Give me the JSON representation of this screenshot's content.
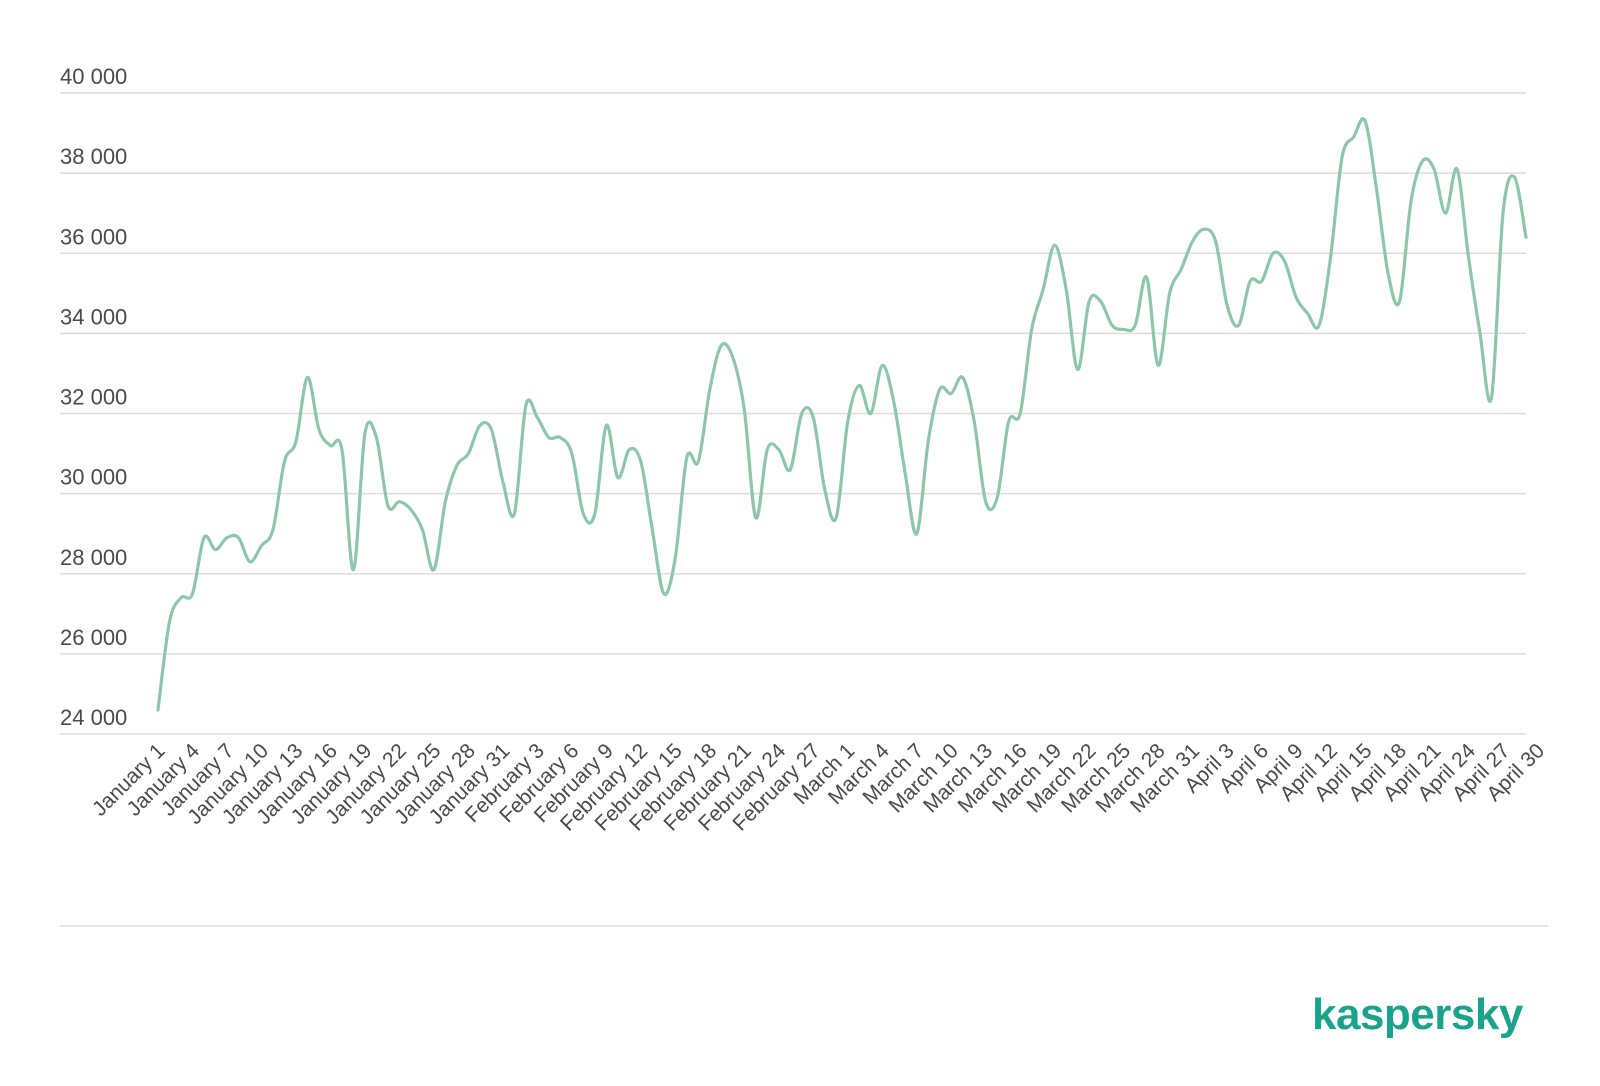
{
  "brand": {
    "logo_text": "kaspersky",
    "color": "#1aa38a"
  },
  "chart_data": {
    "type": "line",
    "title": "",
    "xlabel": "",
    "ylabel": "",
    "ylim": [
      24000,
      40000
    ],
    "yticks": [
      24000,
      26000,
      28000,
      30000,
      32000,
      34000,
      36000,
      38000,
      40000
    ],
    "ytick_labels": [
      "24 000",
      "26 000",
      "28 000",
      "30 000",
      "32 000",
      "34 000",
      "36 000",
      "38 000",
      "40 000"
    ],
    "grid": true,
    "line_color": "#8ec6aa",
    "categories": [
      "January 1",
      "January 2",
      "January 3",
      "January 4",
      "January 5",
      "January 6",
      "January 7",
      "January 8",
      "January 9",
      "January 10",
      "January 11",
      "January 12",
      "January 13",
      "January 14",
      "January 15",
      "January 16",
      "January 17",
      "January 18",
      "January 19",
      "January 20",
      "January 21",
      "January 22",
      "January 23",
      "January 24",
      "January 25",
      "January 26",
      "January 27",
      "January 28",
      "January 29",
      "January 30",
      "January 31",
      "February 1",
      "February 2",
      "February 3",
      "February 4",
      "February 5",
      "February 6",
      "February 7",
      "February 8",
      "February 9",
      "February 10",
      "February 11",
      "February 12",
      "February 13",
      "February 14",
      "February 15",
      "February 16",
      "February 17",
      "February 18",
      "February 19",
      "February 20",
      "February 21",
      "February 22",
      "February 23",
      "February 24",
      "February 25",
      "February 26",
      "February 27",
      "February 28",
      "March 1",
      "March 2",
      "March 3",
      "March 4",
      "March 5",
      "March 6",
      "March 7",
      "March 8",
      "March 9",
      "March 10",
      "March 11",
      "March 12",
      "March 13",
      "March 14",
      "March 15",
      "March 16",
      "March 17",
      "March 18",
      "March 19",
      "March 20",
      "March 21",
      "March 22",
      "March 23",
      "March 24",
      "March 25",
      "March 26",
      "March 27",
      "March 28",
      "March 29",
      "March 30",
      "March 31",
      "April 1",
      "April 2",
      "April 3",
      "April 4",
      "April 5",
      "April 6",
      "April 7",
      "April 8",
      "April 9",
      "April 10",
      "April 11",
      "April 12",
      "April 13",
      "April 14",
      "April 15",
      "April 16",
      "April 17",
      "April 18",
      "April 19",
      "April 20",
      "April 21",
      "April 22",
      "April 23",
      "April 24",
      "April 25",
      "April 26",
      "April 27",
      "April 28",
      "April 29",
      "April 30"
    ],
    "tick_labels": [
      "January 1",
      "January 4",
      "January 7",
      "January 10",
      "January 13",
      "January 16",
      "January 19",
      "January 22",
      "January 25",
      "January 28",
      "January 31",
      "February 3",
      "February 6",
      "February 9",
      "February 12",
      "February 15",
      "February 18",
      "February 21",
      "February 24",
      "February 27",
      "March 1",
      "March 4",
      "March 7",
      "March 10",
      "March 13",
      "March 16",
      "March 19",
      "March 22",
      "March 25",
      "March 28",
      "March 31",
      "April 3",
      "April 6",
      "April 9",
      "April 12",
      "April 15",
      "April 18",
      "April 21",
      "April 24",
      "April 27",
      "April 30"
    ],
    "tick_every": 3,
    "series": [
      {
        "values": [
          24600,
          26800,
          27400,
          27500,
          28900,
          28600,
          28900,
          28900,
          28300,
          28700,
          29100,
          30800,
          31300,
          32900,
          31600,
          31200,
          31100,
          28100,
          31500,
          31400,
          29700,
          29800,
          29600,
          29100,
          28100,
          29800,
          30700,
          31000,
          31700,
          31600,
          30300,
          29500,
          32200,
          31900,
          31400,
          31400,
          31000,
          29500,
          29500,
          31700,
          30400,
          31100,
          30800,
          29100,
          27500,
          28400,
          30900,
          30800,
          32600,
          33700,
          33400,
          32100,
          29400,
          31100,
          31100,
          30600,
          32000,
          31900,
          30100,
          29400,
          31800,
          32700,
          32000,
          33200,
          32300,
          30500,
          29000,
          31300,
          32600,
          32500,
          32900,
          31800,
          29800,
          29900,
          31800,
          32000,
          34100,
          35100,
          36200,
          35100,
          33100,
          34800,
          34800,
          34200,
          34100,
          34200,
          35400,
          33200,
          35000,
          35600,
          36300,
          36600,
          36300,
          34700,
          34200,
          35300,
          35300,
          36000,
          35800,
          34900,
          34500,
          34200,
          35900,
          38400,
          38900,
          39300,
          37600,
          35500,
          34800,
          37300,
          38300,
          38100,
          37000,
          38100,
          35900,
          34000,
          32400,
          37000,
          37900,
          36400
        ]
      }
    ]
  }
}
